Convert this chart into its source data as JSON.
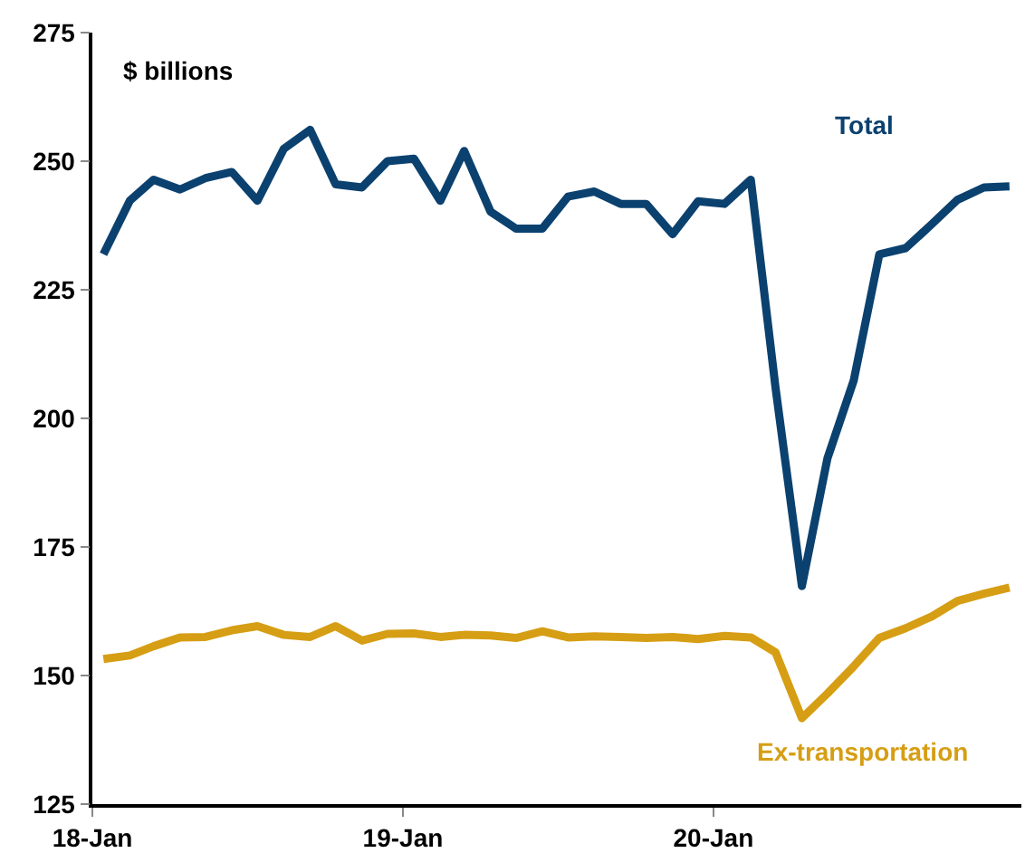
{
  "chart_data": {
    "type": "line",
    "ylabel": "$ billions",
    "x": [
      "2018-01-14",
      "2018-02-14",
      "2018-03-14",
      "2018-04-14",
      "2018-05-14",
      "2018-06-14",
      "2018-07-14",
      "2018-08-14",
      "2018-09-14",
      "2018-10-14",
      "2018-11-14",
      "2018-12-14",
      "2019-01-14",
      "2019-02-14",
      "2019-03-14",
      "2019-04-14",
      "2019-05-14",
      "2019-06-14",
      "2019-07-14",
      "2019-08-14",
      "2019-09-14",
      "2019-10-14",
      "2019-11-14",
      "2019-12-14",
      "2020-01-14",
      "2020-02-14",
      "2020-03-14",
      "2020-04-14",
      "2020-05-14",
      "2020-06-14",
      "2020-07-14",
      "2020-08-14",
      "2020-09-14",
      "2020-10-14",
      "2020-11-14",
      "2020-12-14"
    ],
    "series": [
      {
        "name": "Total",
        "color": "#0b416f",
        "values": [
          231.9,
          242.3,
          246.4,
          244.5,
          246.7,
          247.9,
          242.3,
          252.4,
          256.1,
          245.5,
          244.9,
          250.0,
          250.5,
          242.3,
          252.0,
          240.2,
          236.9,
          236.9,
          243.1,
          244.1,
          241.7,
          241.7,
          235.8,
          242.2,
          241.7,
          246.4,
          206,
          167.4,
          192.2,
          207.4,
          231.9,
          233.1,
          237.8,
          242.5,
          244.9,
          245.1
        ]
      },
      {
        "name": "Ex-transportation",
        "color": "#d69e14",
        "values": [
          153.2,
          153.9,
          155.7,
          157.4,
          157.5,
          158.8,
          159.6,
          157.9,
          157.5,
          159.6,
          156.8,
          158.1,
          158.2,
          157.5,
          157.9,
          157.8,
          157.3,
          158.6,
          157.4,
          157.6,
          157.5,
          157.3,
          157.5,
          157.1,
          157.7,
          157.4,
          154.5,
          141.7,
          146.5,
          151.8,
          157.3,
          159.2,
          161.5,
          164.5,
          165.9,
          167.1
        ]
      }
    ],
    "xlim": [
      "2018-01-01",
      "2020-12-28"
    ],
    "xticks": [
      {
        "value": "2018-01-01",
        "label": "18-Jan"
      },
      {
        "value": "2019-01-01",
        "label": "19-Jan"
      },
      {
        "value": "2020-01-01",
        "label": "20-Jan"
      }
    ],
    "ylim": [
      125,
      275
    ],
    "yticks": [
      125,
      150,
      175,
      200,
      225,
      250,
      275
    ],
    "grid": false,
    "legend": false,
    "marker": "none",
    "line_style": "solid"
  }
}
